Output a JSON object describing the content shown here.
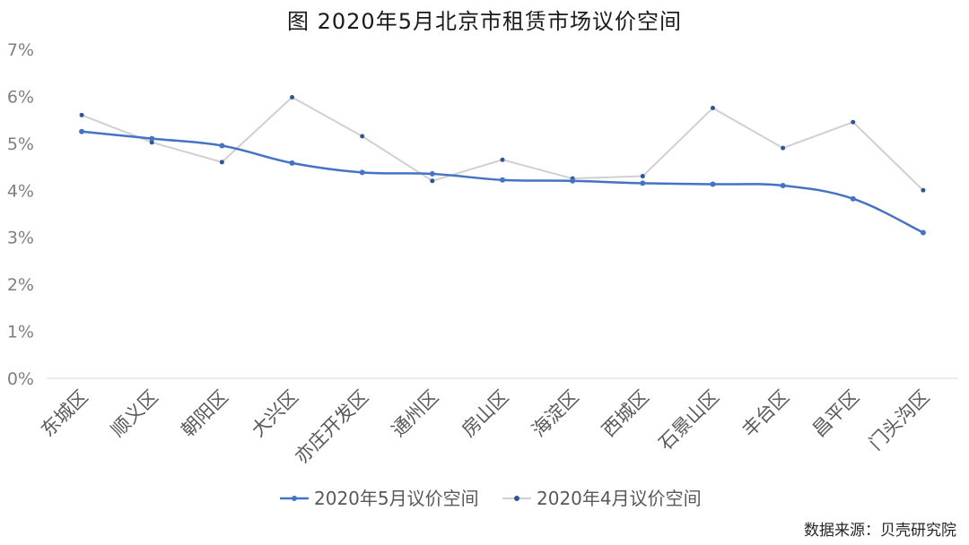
{
  "title": "图 2020年5月北京市租赁市场议价空间",
  "source": "数据来源：贝壳研究院",
  "chart_data": {
    "type": "line",
    "title": "图 2020年5月北京市租赁市场议价空间",
    "categories": [
      "东城区",
      "顺义区",
      "朝阳区",
      "大兴区",
      "亦庄开发区",
      "通州区",
      "房山区",
      "海淀区",
      "西城区",
      "石景山区",
      "丰台区",
      "昌平区",
      "门头沟区"
    ],
    "series": [
      {
        "name": "2020年5月议价空间",
        "color": "#4472C4",
        "values": [
          5.25,
          5.1,
          4.95,
          4.58,
          4.38,
          4.35,
          4.22,
          4.2,
          4.15,
          4.13,
          4.1,
          3.82,
          3.1
        ]
      },
      {
        "name": "2020年4月议价空间",
        "color": "#D0D0D0",
        "values": [
          5.6,
          5.02,
          4.6,
          5.98,
          5.15,
          4.2,
          4.65,
          4.25,
          4.3,
          5.75,
          4.9,
          5.45,
          4.0
        ]
      }
    ],
    "y_ticks": [
      "0%",
      "1%",
      "2%",
      "3%",
      "4%",
      "5%",
      "6%",
      "7%"
    ],
    "ylim": [
      0,
      7
    ],
    "y_unit": "%",
    "grid": "horizontal-baseline-only",
    "legend_position": "bottom"
  }
}
